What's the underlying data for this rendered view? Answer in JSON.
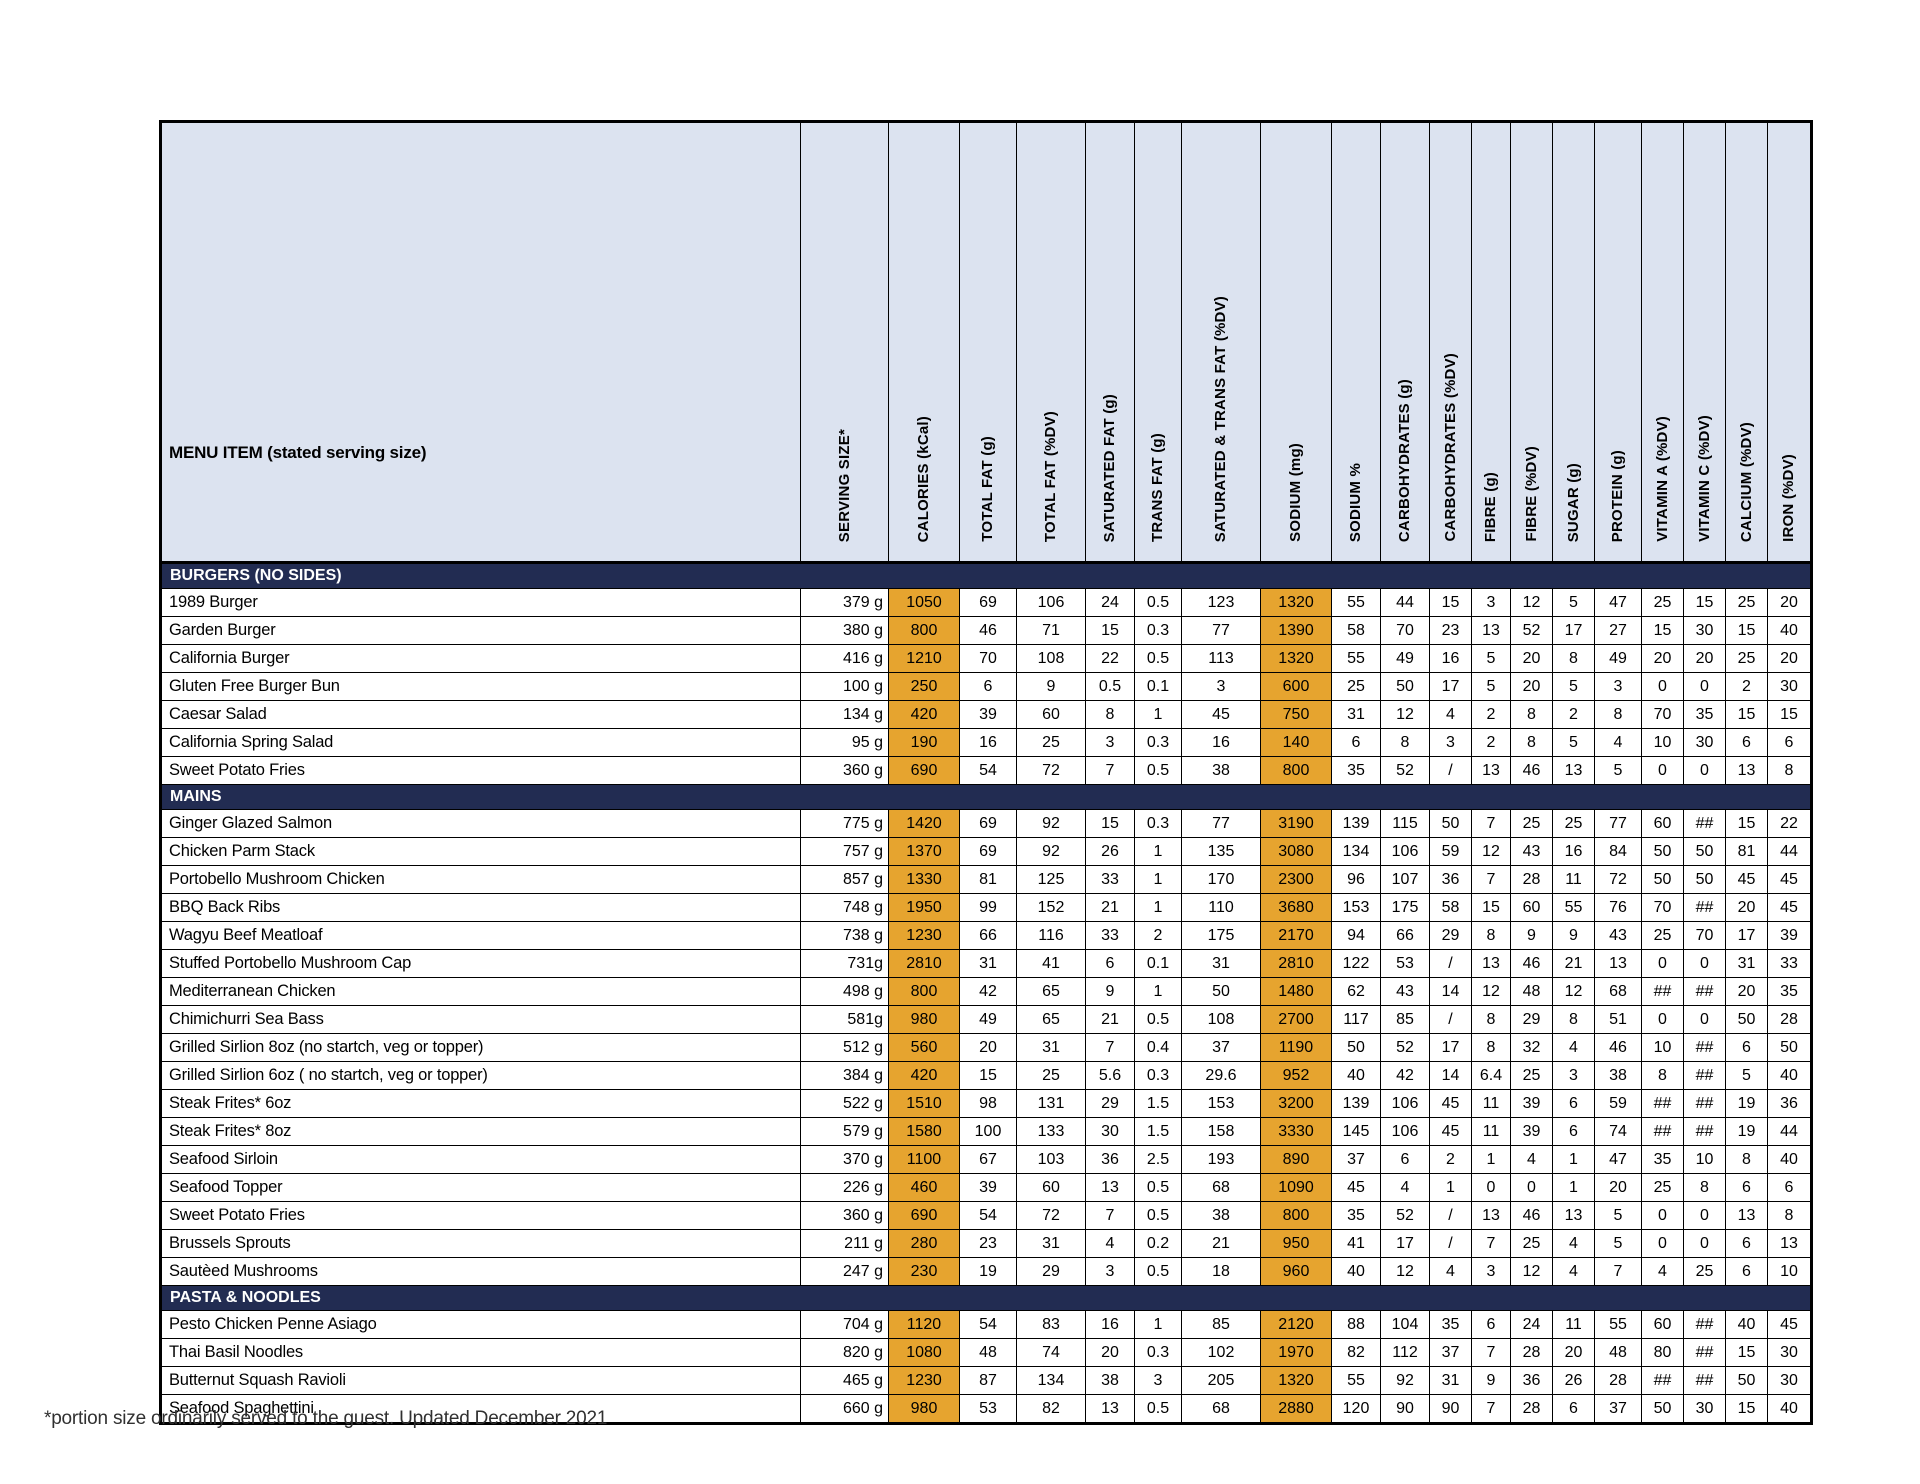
{
  "colors": {
    "header_bg": "#dce3f0",
    "highlight": "#e6a42f",
    "section_bg": "#222c52",
    "grid": "#000000"
  },
  "table": {
    "menu_item_header": "MENU ITEM (stated serving size)",
    "columns": [
      {
        "label": "SERVING SIZE*",
        "highlight": false
      },
      {
        "label": "CALORIES (kCal)",
        "highlight": true
      },
      {
        "label": "TOTAL FAT (g)",
        "highlight": false
      },
      {
        "label": "TOTAL FAT (%DV)",
        "highlight": false
      },
      {
        "label": "SATURATED FAT (g)",
        "highlight": false
      },
      {
        "label": "TRANS FAT (g)",
        "highlight": false
      },
      {
        "label": "SATURATED & TRANS FAT (%DV)",
        "highlight": false
      },
      {
        "label": "SODIUM (mg)",
        "highlight": true
      },
      {
        "label": "SODIUM %",
        "highlight": false
      },
      {
        "label": "CARBOHYDRATES (g)",
        "highlight": false
      },
      {
        "label": "CARBOHYDRATES (%DV)",
        "highlight": false
      },
      {
        "label": "FIBRE (g)",
        "highlight": false
      },
      {
        "label": "FIBRE (%DV)",
        "highlight": false
      },
      {
        "label": "SUGAR (g)",
        "highlight": false
      },
      {
        "label": "PROTEIN (g)",
        "highlight": false
      },
      {
        "label": "VITAMIN A (%DV)",
        "highlight": false
      },
      {
        "label": "VITAMIN C (%DV)",
        "highlight": false
      },
      {
        "label": "CALCIUM (%DV)",
        "highlight": false
      },
      {
        "label": "IRON (%DV)",
        "highlight": false
      }
    ],
    "sections": [
      {
        "title": "BURGERS (NO SIDES)",
        "rows": [
          {
            "name": "1989 Burger",
            "values": [
              "379 g",
              "1050",
              "69",
              "106",
              "24",
              "0.5",
              "123",
              "1320",
              "55",
              "44",
              "15",
              "3",
              "12",
              "5",
              "47",
              "25",
              "15",
              "25",
              "20"
            ]
          },
          {
            "name": "Garden Burger",
            "values": [
              "380 g",
              "800",
              "46",
              "71",
              "15",
              "0.3",
              "77",
              "1390",
              "58",
              "70",
              "23",
              "13",
              "52",
              "17",
              "27",
              "15",
              "30",
              "15",
              "40"
            ]
          },
          {
            "name": "California Burger",
            "values": [
              "416 g",
              "1210",
              "70",
              "108",
              "22",
              "0.5",
              "113",
              "1320",
              "55",
              "49",
              "16",
              "5",
              "20",
              "8",
              "49",
              "20",
              "20",
              "25",
              "20"
            ]
          },
          {
            "name": "Gluten Free Burger Bun",
            "values": [
              "100 g",
              "250",
              "6",
              "9",
              "0.5",
              "0.1",
              "3",
              "600",
              "25",
              "50",
              "17",
              "5",
              "20",
              "5",
              "3",
              "0",
              "0",
              "2",
              "30"
            ]
          },
          {
            "name": "Caesar Salad",
            "values": [
              "134 g",
              "420",
              "39",
              "60",
              "8",
              "1",
              "45",
              "750",
              "31",
              "12",
              "4",
              "2",
              "8",
              "2",
              "8",
              "70",
              "35",
              "15",
              "15"
            ]
          },
          {
            "name": "California Spring Salad",
            "values": [
              "95 g",
              "190",
              "16",
              "25",
              "3",
              "0.3",
              "16",
              "140",
              "6",
              "8",
              "3",
              "2",
              "8",
              "5",
              "4",
              "10",
              "30",
              "6",
              "6"
            ]
          },
          {
            "name": "Sweet Potato Fries",
            "values": [
              "360 g",
              "690",
              "54",
              "72",
              "7",
              "0.5",
              "38",
              "800",
              "35",
              "52",
              "/",
              "13",
              "46",
              "13",
              "5",
              "0",
              "0",
              "13",
              "8"
            ]
          }
        ]
      },
      {
        "title": "MAINS",
        "rows": [
          {
            "name": "Ginger Glazed Salmon",
            "values": [
              "775 g",
              "1420",
              "69",
              "92",
              "15",
              "0.3",
              "77",
              "3190",
              "139",
              "115",
              "50",
              "7",
              "25",
              "25",
              "77",
              "60",
              "##",
              "15",
              "22"
            ]
          },
          {
            "name": "Chicken Parm Stack",
            "values": [
              "757 g",
              "1370",
              "69",
              "92",
              "26",
              "1",
              "135",
              "3080",
              "134",
              "106",
              "59",
              "12",
              "43",
              "16",
              "84",
              "50",
              "50",
              "81",
              "44"
            ]
          },
          {
            "name": "Portobello Mushroom Chicken",
            "values": [
              "857 g",
              "1330",
              "81",
              "125",
              "33",
              "1",
              "170",
              "2300",
              "96",
              "107",
              "36",
              "7",
              "28",
              "11",
              "72",
              "50",
              "50",
              "45",
              "45"
            ]
          },
          {
            "name": "BBQ Back Ribs",
            "values": [
              "748 g",
              "1950",
              "99",
              "152",
              "21",
              "1",
              "110",
              "3680",
              "153",
              "175",
              "58",
              "15",
              "60",
              "55",
              "76",
              "70",
              "##",
              "20",
              "45"
            ]
          },
          {
            "name": "Wagyu Beef Meatloaf",
            "values": [
              "738 g",
              "1230",
              "66",
              "116",
              "33",
              "2",
              "175",
              "2170",
              "94",
              "66",
              "29",
              "8",
              "9",
              "9",
              "43",
              "25",
              "70",
              "17",
              "39"
            ]
          },
          {
            "name": "Stuffed Portobello Mushroom Cap",
            "values": [
              "731g",
              "2810",
              "31",
              "41",
              "6",
              "0.1",
              "31",
              "2810",
              "122",
              "53",
              "/",
              "13",
              "46",
              "21",
              "13",
              "0",
              "0",
              "31",
              "33"
            ]
          },
          {
            "name": "Mediterranean Chicken",
            "values": [
              "498 g",
              "800",
              "42",
              "65",
              "9",
              "1",
              "50",
              "1480",
              "62",
              "43",
              "14",
              "12",
              "48",
              "12",
              "68",
              "##",
              "##",
              "20",
              "35"
            ]
          },
          {
            "name": "Chimichurri Sea Bass",
            "values": [
              "581g",
              "980",
              "49",
              "65",
              "21",
              "0.5",
              "108",
              "2700",
              "117",
              "85",
              "/",
              "8",
              "29",
              "8",
              "51",
              "0",
              "0",
              "50",
              "28"
            ]
          },
          {
            "name": "Grilled Sirlion 8oz (no startch, veg or  topper)",
            "values": [
              "512 g",
              "560",
              "20",
              "31",
              "7",
              "0.4",
              "37",
              "1190",
              "50",
              "52",
              "17",
              "8",
              "32",
              "4",
              "46",
              "10",
              "##",
              "6",
              "50"
            ]
          },
          {
            "name": "Grilled Sirlion 6oz ( no startch, veg or topper)",
            "values": [
              "384 g",
              "420",
              "15",
              "25",
              "5.6",
              "0.3",
              "29.6",
              "952",
              "40",
              "42",
              "14",
              "6.4",
              "25",
              "3",
              "38",
              "8",
              "##",
              "5",
              "40"
            ]
          },
          {
            "name": "Steak Frites* 6oz",
            "values": [
              "522 g",
              "1510",
              "98",
              "131",
              "29",
              "1.5",
              "153",
              "3200",
              "139",
              "106",
              "45",
              "11",
              "39",
              "6",
              "59",
              "##",
              "##",
              "19",
              "36"
            ]
          },
          {
            "name": "Steak Frites* 8oz",
            "values": [
              "579 g",
              "1580",
              "100",
              "133",
              "30",
              "1.5",
              "158",
              "3330",
              "145",
              "106",
              "45",
              "11",
              "39",
              "6",
              "74",
              "##",
              "##",
              "19",
              "44"
            ]
          },
          {
            "name": "Seafood Sirloin",
            "values": [
              "370 g",
              "1100",
              "67",
              "103",
              "36",
              "2.5",
              "193",
              "890",
              "37",
              "6",
              "2",
              "1",
              "4",
              "1",
              "47",
              "35",
              "10",
              "8",
              "40"
            ]
          },
          {
            "name": "Seafood Topper",
            "values": [
              "226 g",
              "460",
              "39",
              "60",
              "13",
              "0.5",
              "68",
              "1090",
              "45",
              "4",
              "1",
              "0",
              "0",
              "1",
              "20",
              "25",
              "8",
              "6",
              "6"
            ]
          },
          {
            "name": "Sweet Potato Fries",
            "values": [
              "360 g",
              "690",
              "54",
              "72",
              "7",
              "0.5",
              "38",
              "800",
              "35",
              "52",
              "/",
              "13",
              "46",
              "13",
              "5",
              "0",
              "0",
              "13",
              "8"
            ]
          },
          {
            "name": "Brussels Sprouts",
            "values": [
              "211 g",
              "280",
              "23",
              "31",
              "4",
              "0.2",
              "21",
              "950",
              "41",
              "17",
              "/",
              "7",
              "25",
              "4",
              "5",
              "0",
              "0",
              "6",
              "13"
            ]
          },
          {
            "name": "Sautèed Mushrooms",
            "values": [
              "247 g",
              "230",
              "19",
              "29",
              "3",
              "0.5",
              "18",
              "960",
              "40",
              "12",
              "4",
              "3",
              "12",
              "4",
              "7",
              "4",
              "25",
              "6",
              "10"
            ]
          }
        ]
      },
      {
        "title": "PASTA & NOODLES",
        "rows": [
          {
            "name": "Pesto Chicken Penne Asiago",
            "values": [
              "704 g",
              "1120",
              "54",
              "83",
              "16",
              "1",
              "85",
              "2120",
              "88",
              "104",
              "35",
              "6",
              "24",
              "11",
              "55",
              "60",
              "##",
              "40",
              "45"
            ]
          },
          {
            "name": "Thai Basil Noodles",
            "values": [
              "820 g",
              "1080",
              "48",
              "74",
              "20",
              "0.3",
              "102",
              "1970",
              "82",
              "112",
              "37",
              "7",
              "28",
              "20",
              "48",
              "80",
              "##",
              "15",
              "30"
            ]
          },
          {
            "name": "Butternut Squash Ravioli",
            "values": [
              "465 g",
              "1230",
              "87",
              "134",
              "38",
              "3",
              "205",
              "1320",
              "55",
              "92",
              "31",
              "9",
              "36",
              "26",
              "28",
              "##",
              "##",
              "50",
              "30"
            ]
          },
          {
            "name": "Seafood Spaghettini",
            "values": [
              "660 g",
              "980",
              "53",
              "82",
              "13",
              "0.5",
              "68",
              "2880",
              "120",
              "90",
              "90",
              "7",
              "28",
              "6",
              "37",
              "50",
              "30",
              "15",
              "40"
            ]
          }
        ]
      }
    ]
  },
  "footer_note": "*portion size ordinarily served to the guest. Updated December 2021"
}
